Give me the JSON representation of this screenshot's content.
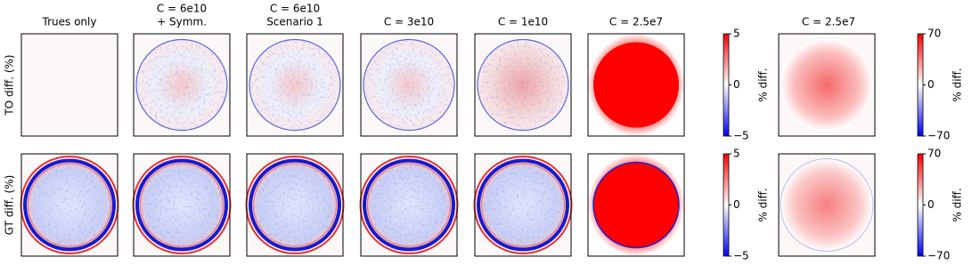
{
  "columns": [
    [
      "Trues only"
    ],
    [
      "C = 6e10",
      "+ Symm."
    ],
    [
      "C = 6e10",
      "Scenario 1"
    ],
    [
      "C = 3e10"
    ],
    [
      "C = 1e10"
    ],
    [
      "C = 2.5e7"
    ]
  ],
  "side_title": "C = 2.5e7",
  "rows": [
    "TO diff. (%)",
    "GT diff. (%)"
  ],
  "colorbars": [
    {
      "label": "% diff.",
      "lim": [
        -5,
        5
      ],
      "ticks": [
        5,
        0,
        {
          "value": -5,
          "label": "−5"
        }
      ]
    },
    {
      "label": "% diff.",
      "lim": [
        -70,
        70
      ],
      "ticks": [
        70,
        0,
        {
          "value": -70,
          "label": "−70"
        }
      ]
    },
    {
      "label": "% diff.",
      "lim": [
        -5,
        5
      ],
      "ticks": [
        5,
        0,
        {
          "value": -5,
          "label": "−5"
        }
      ]
    },
    {
      "label": "% diff.",
      "lim": [
        -70,
        70
      ],
      "ticks": [
        70,
        0,
        {
          "value": -70,
          "label": "−70"
        }
      ]
    }
  ]
}
